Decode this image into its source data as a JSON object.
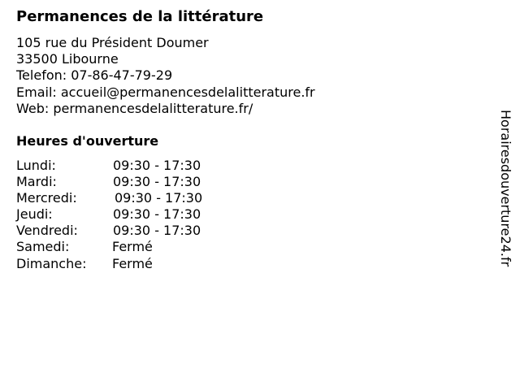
{
  "title": "Permanences de la littérature",
  "address": {
    "street": "105 rue du Président Doumer",
    "city": "33500 Libourne",
    "phone": "Telefon: 07-86-47-79-29",
    "email": "Email: accueil@permanencesdelalitterature.fr",
    "web": "Web: permanencesdelalitterature.fr/"
  },
  "hours_title": "Heures d'ouverture",
  "hours": [
    {
      "day": "Lundi:",
      "time": "09:30 - 17:30"
    },
    {
      "day": "Mardi:",
      "time": "09:30 - 17:30"
    },
    {
      "day": "Mercredi:",
      "time": "09:30 - 17:30"
    },
    {
      "day": "Jeudi:",
      "time": "09:30 - 17:30"
    },
    {
      "day": "Vendredi:",
      "time": "09:30 - 17:30"
    },
    {
      "day": "Samedi:",
      "time": "Fermé"
    },
    {
      "day": "Dimanche:",
      "time": "Fermé"
    }
  ],
  "watermark": "Horairesdouverture24.fr"
}
